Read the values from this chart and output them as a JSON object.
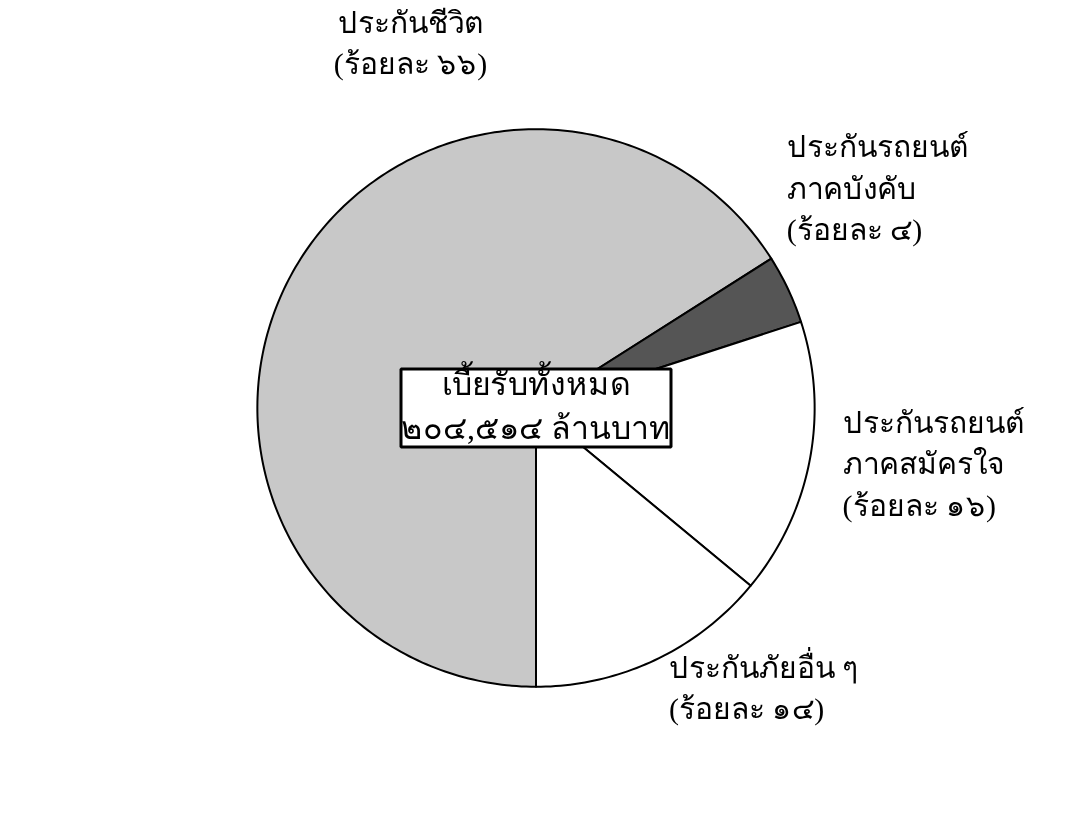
{
  "chart_data": {
    "type": "pie",
    "categories": [
      "ประกันชีวิต",
      "ประกันรถยนต์\nภาคบังคับ",
      "ประกันรถยนต์\nภาคสมัครใจ",
      "ประกันภัยอื่น ๆ"
    ],
    "values": [
      66,
      4,
      16,
      14
    ],
    "value_labels": [
      "(ร้อยละ ๖๖)",
      "(ร้อยละ ๔)",
      "(ร้อยละ ๑๖)",
      "(ร้อยละ ๑๔)"
    ],
    "colors": [
      "#c8c8c8",
      "#555555",
      "#ffffff",
      "#ffffff"
    ],
    "annotations": [
      "เบี้ยรับทั้งหมด\n๒๐๔,๕๑๔ ล้านบาท"
    ]
  }
}
